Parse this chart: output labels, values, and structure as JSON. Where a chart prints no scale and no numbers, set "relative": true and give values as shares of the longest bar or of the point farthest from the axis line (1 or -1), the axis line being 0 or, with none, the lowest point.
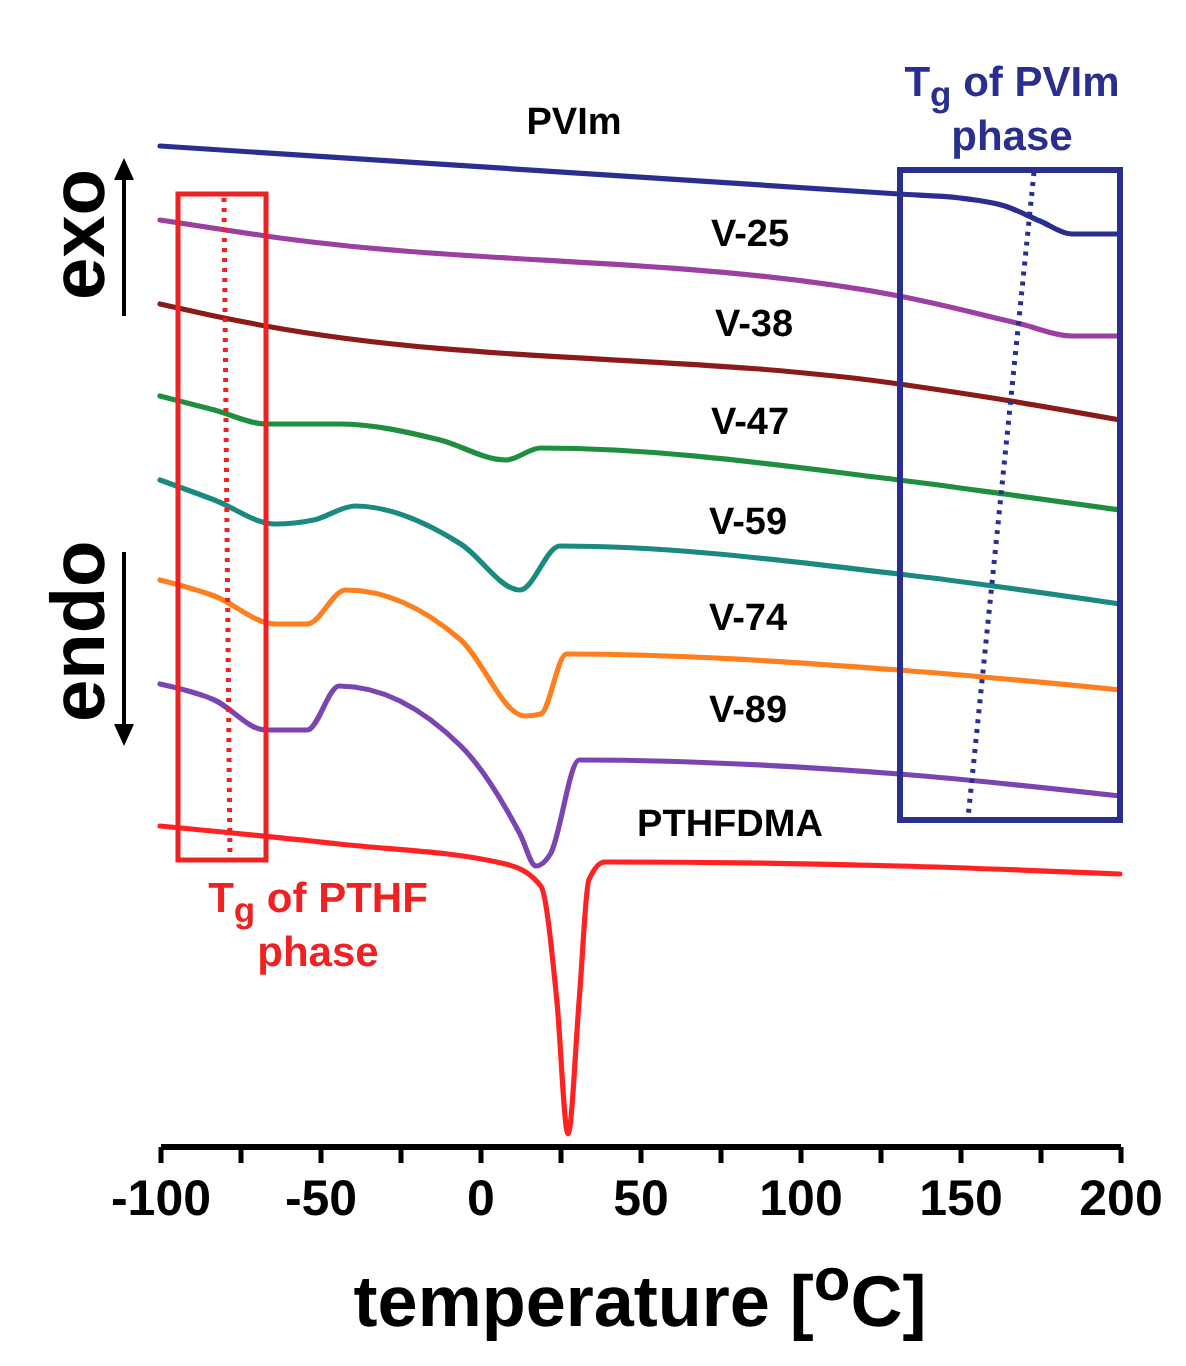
{
  "chart_data": {
    "type": "line",
    "relative": true,
    "xlabel": "temperature [$^{o}$C]",
    "xlim": [
      -100,
      200
    ],
    "xticks": [
      -100,
      {
        "value": -75,
        "label": null
      },
      -50,
      {
        "value": -25,
        "label": null
      },
      0,
      {
        "value": 25,
        "label": null
      },
      50,
      {
        "value": 75,
        "label": null
      },
      100,
      {
        "value": 125,
        "label": null
      },
      150,
      {
        "value": 175,
        "label": null
      },
      200
    ],
    "legend": false,
    "grid": false,
    "line_style": "solid",
    "marker": "none",
    "annotations": [
      "T$_{g}$ of PVIm phase",
      "T$_{g}$ of PTHF phase",
      "exo",
      "endo"
    ],
    "series": [
      {
        "name": "PVIm",
        "color": "#2a2f8f",
        "x": [
          -100,
          131,
          150,
          164,
          175,
          185,
          200
        ],
        "values": [
          1.0,
          0.952,
          0.948,
          0.94,
          0.925,
          0.912,
          0.912
        ]
      },
      {
        "name": "V-25",
        "color": "#9b3fa0",
        "x": [
          -100,
          -67,
          131,
          169,
          185,
          200
        ],
        "values": [
          0.926,
          0.91,
          0.85,
          0.822,
          0.81,
          0.81
        ]
      },
      {
        "name": "V-38",
        "color": "#8b1a1a",
        "x": [
          -100,
          -83,
          -67,
          131,
          164,
          200
        ],
        "values": [
          0.842,
          0.83,
          0.82,
          0.762,
          0.746,
          0.726
        ]
      },
      {
        "name": "V-47",
        "color": "#1f8f3f",
        "x": [
          -100,
          -83,
          -67,
          -44,
          -12.5,
          8,
          19,
          131,
          164,
          200
        ],
        "values": [
          0.75,
          0.736,
          0.722,
          0.722,
          0.706,
          0.686,
          0.698,
          0.666,
          0.652,
          0.636
        ]
      },
      {
        "name": "V-59",
        "color": "#1a8a80",
        "x": [
          -100,
          -83,
          -64,
          -52,
          -39,
          -6,
          12.5,
          25,
          131,
          200
        ],
        "values": [
          0.666,
          0.646,
          0.622,
          0.626,
          0.64,
          0.602,
          0.556,
          0.6,
          0.572,
          0.542
        ]
      },
      {
        "name": "V-74",
        "color": "#ff7f1e",
        "x": [
          -100,
          -83,
          -64,
          -54,
          -42,
          -6,
          14,
          19,
          27,
          131,
          200
        ],
        "values": [
          0.566,
          0.55,
          0.522,
          0.522,
          0.556,
          0.506,
          0.43,
          0.432,
          0.492,
          0.476,
          0.456
        ]
      },
      {
        "name": "V-89",
        "color": "#7a45b0",
        "x": [
          -100,
          -83,
          -67,
          -54,
          -44,
          -6,
          12.5,
          17.5,
          22,
          31,
          131,
          200
        ],
        "values": [
          0.462,
          0.446,
          0.416,
          0.416,
          0.46,
          0.4,
          0.312,
          0.28,
          0.292,
          0.386,
          0.372,
          0.35
        ]
      },
      {
        "name": "PTHFDMA",
        "color": "#ff2222",
        "x": [
          -100,
          -44,
          8,
          19,
          24,
          27.5,
          31,
          34,
          39,
          131,
          200
        ],
        "values": [
          0.32,
          0.302,
          0.282,
          0.26,
          0.146,
          0.012,
          0.146,
          0.266,
          0.284,
          0.28,
          0.272
        ]
      }
    ]
  }
}
